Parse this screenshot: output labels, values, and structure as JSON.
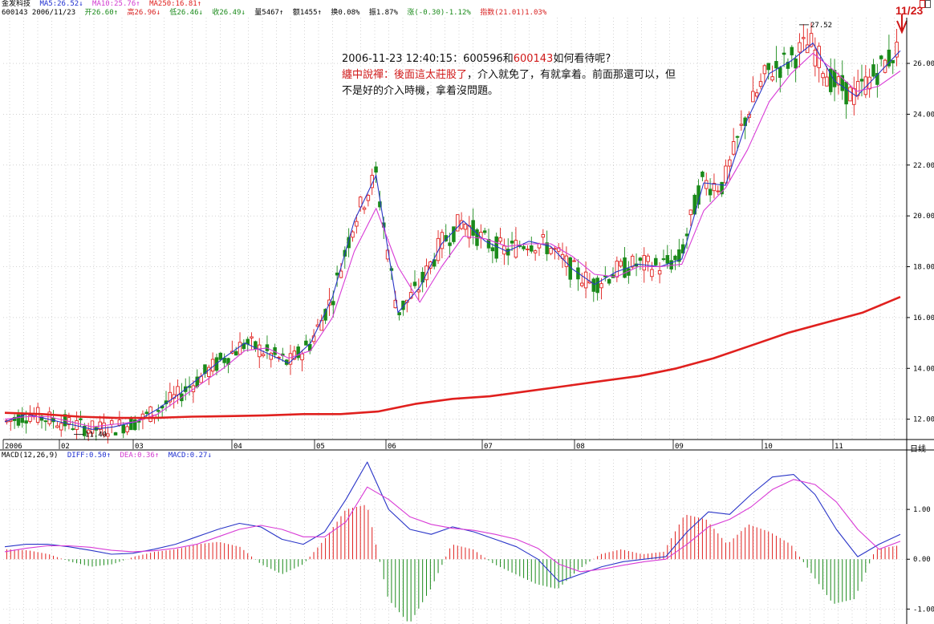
{
  "header": {
    "title": "金发科技",
    "ma5": "MA5:26.52↓",
    "ma10": "MA10:25.76↑",
    "ma250": "MA250:16.81↑",
    "code_date": "600143 2006/11/23",
    "open": "开26.60↑",
    "high": "高26.96↓",
    "low": "低26.46↓",
    "close": "收26.49↓",
    "volume": "量5467↑",
    "amount": "额1455↑",
    "turnover": "换0.08%",
    "amplitude": "振1.87%",
    "change": "涨(-0.30)-1.12%",
    "index": "指数(21.01)1.03%"
  },
  "annotation": {
    "line1_prefix": "2006-11-23 12:40:15：600596和",
    "line1_code": "600143",
    "line1_suffix": "如何看待呢?",
    "line2_red": "纏中說禪：後面這太莊股了",
    "line2_rest": "，介入就免了，有就拿着。前面那還可以，但",
    "line3": "不是好的介入時機，拿着沒問題。"
  },
  "date_flag": "11/23",
  "period_label": "日线",
  "macd_header": {
    "name": "MACD(12,26,9)",
    "diff": "DIFF:0.50↑",
    "dea": "DEA:0.36↑",
    "macd": "MACD:0.27↓"
  },
  "colors": {
    "up": "#e0201e",
    "down": "#1a8a1a",
    "ma5": "#2a35c8",
    "ma10": "#d83bd6",
    "ma250": "#e0201e",
    "grid": "#b8b8b8"
  },
  "chart_data": [
    {
      "type": "line",
      "title": "",
      "ylim": [
        11.2,
        27.8
      ],
      "y_ticks": [
        "12.00",
        "14.00",
        "16.00",
        "18.00",
        "20.00",
        "22.00",
        "24.00",
        "26.00"
      ],
      "x_ticks": [
        "2006",
        "02",
        "03",
        "04",
        "05",
        "06",
        "07",
        "08",
        "09",
        "10",
        "11"
      ],
      "annotations": [
        {
          "text": "11.40",
          "value": 11.4
        },
        {
          "text": "27.52",
          "value": 27.52
        }
      ],
      "series": [
        {
          "name": "MA5",
          "values": [
            11.9,
            12.2,
            12.0,
            11.8,
            11.6,
            11.7,
            11.9,
            12.4,
            13.0,
            13.7,
            14.4,
            15.0,
            14.6,
            14.2,
            15.0,
            16.8,
            19.8,
            21.6,
            16.2,
            17.2,
            18.9,
            19.8,
            19.0,
            18.6,
            19.0,
            18.8,
            17.9,
            17.3,
            17.8,
            18.1,
            18.0,
            18.3,
            21.3,
            21.2,
            23.8,
            25.6,
            26.1,
            26.8,
            25.3,
            24.7,
            25.6,
            26.5
          ]
        },
        {
          "name": "MA10",
          "values": [
            12.0,
            12.1,
            12.1,
            11.9,
            11.7,
            11.8,
            11.9,
            12.2,
            12.8,
            13.4,
            14.0,
            14.7,
            14.8,
            14.4,
            14.7,
            16.0,
            18.6,
            20.3,
            18.0,
            16.6,
            18.0,
            19.2,
            19.1,
            18.8,
            18.9,
            18.9,
            18.4,
            17.7,
            17.6,
            18.0,
            18.0,
            18.1,
            20.2,
            21.1,
            22.6,
            24.5,
            25.6,
            26.4,
            25.7,
            24.9,
            25.1,
            25.7
          ]
        },
        {
          "name": "MA250",
          "values": [
            12.25,
            12.2,
            12.1,
            12.05,
            12.05,
            12.1,
            12.12,
            12.15,
            12.2,
            12.2,
            12.3,
            12.6,
            12.8,
            12.9,
            13.1,
            13.3,
            13.5,
            13.7,
            14.0,
            14.4,
            14.9,
            15.4,
            15.8,
            16.2,
            16.81
          ]
        }
      ]
    },
    {
      "type": "bar",
      "title": "",
      "ylim": [
        -1.3,
        2.0
      ],
      "y_ticks": [
        "-1.00",
        "0.00",
        "1.00"
      ],
      "series": [
        {
          "name": "DIFF",
          "values": [
            0.25,
            0.3,
            0.3,
            0.25,
            0.18,
            0.1,
            0.12,
            0.2,
            0.3,
            0.45,
            0.6,
            0.72,
            0.65,
            0.4,
            0.3,
            0.55,
            1.2,
            1.95,
            1.0,
            0.6,
            0.5,
            0.65,
            0.55,
            0.4,
            0.25,
            0.0,
            -0.45,
            -0.3,
            -0.15,
            -0.05,
            0.0,
            0.05,
            0.55,
            0.95,
            0.9,
            1.3,
            1.65,
            1.7,
            1.3,
            0.6,
            0.05,
            0.3,
            0.5
          ]
        },
        {
          "name": "DEA",
          "values": [
            0.15,
            0.22,
            0.27,
            0.27,
            0.24,
            0.18,
            0.15,
            0.17,
            0.22,
            0.3,
            0.45,
            0.6,
            0.68,
            0.6,
            0.45,
            0.45,
            0.75,
            1.45,
            1.2,
            0.85,
            0.7,
            0.62,
            0.58,
            0.5,
            0.4,
            0.22,
            -0.1,
            -0.25,
            -0.2,
            -0.12,
            -0.05,
            0.0,
            0.3,
            0.65,
            0.8,
            1.05,
            1.4,
            1.6,
            1.5,
            1.15,
            0.6,
            0.2,
            0.36
          ]
        },
        {
          "name": "MACD",
          "values": [
            0.2,
            0.18,
            0.1,
            -0.05,
            -0.15,
            -0.1,
            0.05,
            0.15,
            0.2,
            0.3,
            0.35,
            0.25,
            -0.1,
            -0.3,
            -0.1,
            0.4,
            1.0,
            1.1,
            -0.8,
            -1.3,
            -0.6,
            0.3,
            0.2,
            -0.1,
            -0.3,
            -0.5,
            -0.6,
            -0.2,
            0.1,
            0.2,
            0.1,
            0.15,
            0.9,
            0.8,
            0.3,
            0.7,
            0.55,
            0.3,
            -0.3,
            -0.9,
            -0.8,
            0.2,
            0.27
          ]
        }
      ]
    }
  ]
}
